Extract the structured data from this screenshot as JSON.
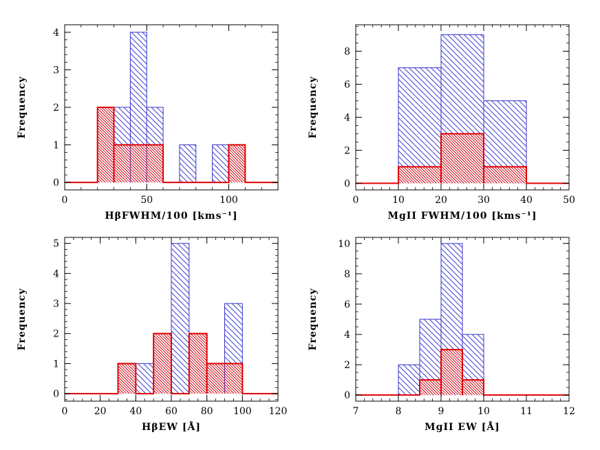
{
  "chart_data": [
    {
      "type": "histogram",
      "xlabel": "HβFWHM/100 [kms⁻¹]",
      "ylabel": "Frequency",
      "xlim": [
        0,
        130
      ],
      "ylim": [
        -0.2,
        4.2
      ],
      "xticks": [
        0,
        50,
        100
      ],
      "yticks": [
        0,
        1,
        2,
        3,
        4
      ],
      "xminor": 10,
      "yminor": 0.2,
      "series": [
        {
          "bins": [
            [
              20,
              30,
              2
            ],
            [
              30,
              40,
              2
            ],
            [
              40,
              50,
              4
            ],
            [
              50,
              60,
              2
            ],
            [
              70,
              80,
              1
            ],
            [
              90,
              100,
              1
            ],
            [
              100,
              110,
              1
            ]
          ],
          "color": "#3333cc",
          "fill": "hatch-blue"
        },
        {
          "bins": [
            [
              20,
              30,
              2
            ],
            [
              30,
              60,
              1
            ],
            [
              100,
              110,
              1
            ]
          ],
          "color": "#e00000",
          "fill": "hatch-red"
        }
      ]
    },
    {
      "type": "histogram",
      "xlabel": "MgII FWHM/100 [kms⁻¹]",
      "ylabel": "Frequency",
      "xlim": [
        0,
        50
      ],
      "ylim": [
        -0.4,
        9.6
      ],
      "xticks": [
        0,
        10,
        20,
        30,
        40,
        50
      ],
      "yticks": [
        0,
        2,
        4,
        6,
        8
      ],
      "xminor": 2,
      "yminor": 0.5,
      "series": [
        {
          "bins": [
            [
              10,
              20,
              7
            ],
            [
              20,
              30,
              9
            ],
            [
              30,
              40,
              5
            ]
          ],
          "color": "#3333cc",
          "fill": "hatch-blue"
        },
        {
          "bins": [
            [
              10,
              20,
              1
            ],
            [
              20,
              30,
              3
            ],
            [
              30,
              40,
              1
            ]
          ],
          "color": "#e00000",
          "fill": "hatch-red"
        }
      ]
    },
    {
      "type": "histogram",
      "xlabel": "HβEW [Å]",
      "ylabel": "Frequency",
      "xlim": [
        0,
        120
      ],
      "ylim": [
        -0.25,
        5.2
      ],
      "xticks": [
        0,
        20,
        40,
        60,
        80,
        100,
        120
      ],
      "yticks": [
        0,
        1,
        2,
        3,
        4,
        5
      ],
      "xminor": 5,
      "yminor": 0.2,
      "series": [
        {
          "bins": [
            [
              30,
              40,
              1
            ],
            [
              40,
              50,
              1
            ],
            [
              50,
              60,
              2
            ],
            [
              60,
              70,
              5
            ],
            [
              70,
              80,
              2
            ],
            [
              80,
              90,
              1
            ],
            [
              90,
              100,
              3
            ]
          ],
          "color": "#3333cc",
          "fill": "hatch-blue"
        },
        {
          "bins": [
            [
              30,
              40,
              1
            ],
            [
              50,
              60,
              2
            ],
            [
              70,
              80,
              2
            ],
            [
              80,
              100,
              1
            ]
          ],
          "color": "#e00000",
          "fill": "hatch-red"
        }
      ]
    },
    {
      "type": "histogram",
      "xlabel": "MgII EW [Å]",
      "ylabel": "Frequency",
      "xlim": [
        7,
        12
      ],
      "ylim": [
        -0.4,
        10.4
      ],
      "xticks": [
        7,
        8,
        9,
        10,
        11,
        12
      ],
      "yticks": [
        0,
        2,
        4,
        6,
        8,
        10
      ],
      "xminor": 0.2,
      "yminor": 0.5,
      "series": [
        {
          "bins": [
            [
              8,
              8.5,
              2
            ],
            [
              8.5,
              9,
              5
            ],
            [
              9,
              9.5,
              10
            ],
            [
              9.5,
              10,
              4
            ]
          ],
          "color": "#3333cc",
          "fill": "hatch-blue"
        },
        {
          "bins": [
            [
              8.5,
              9,
              1
            ],
            [
              9,
              9.5,
              3
            ],
            [
              9.5,
              10,
              1
            ]
          ],
          "color": "#e00000",
          "fill": "hatch-red"
        }
      ]
    }
  ]
}
